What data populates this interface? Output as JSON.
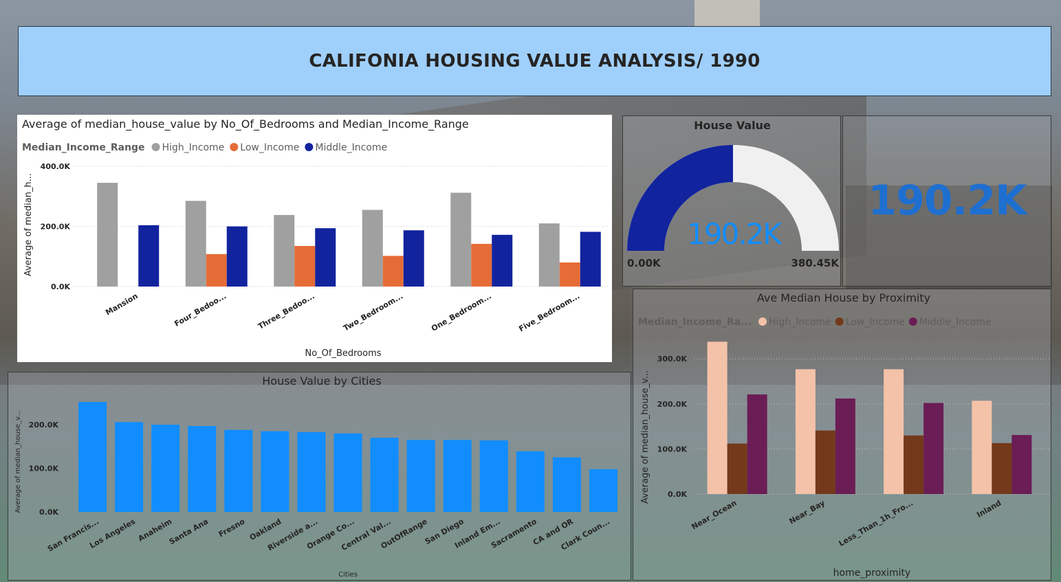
{
  "dashboard": {
    "title": "CALIFONIA HOUSING VALUE ANALYSIS/ 1990"
  },
  "colors": {
    "high_income": "#a0a0a0",
    "low_income": "#e66c37",
    "middle_income": "#12239e",
    "proximity_high": "#f4c2a8",
    "proximity_low": "#74391a",
    "proximity_middle": "#6b1d55",
    "cities_bar": "#118dff",
    "gauge_fill": "#12239e",
    "gauge_track": "#f0f0f0",
    "kpi_text": "#1f6fd0",
    "banner": "#9fcffb"
  },
  "gauge": {
    "title": "House Value",
    "value_label": "190.2K",
    "min_label": "0.00K",
    "max_label": "380.45K",
    "value": 190.2,
    "min": 0,
    "max": 380.45
  },
  "kpi_card": {
    "value_label": "190.2K"
  },
  "chart_data": [
    {
      "id": "bedrooms",
      "type": "bar",
      "title": "Average of median_house_value by No_Of_Bedrooms and Median_Income_Range",
      "legend_title": "Median_Income_Range",
      "xlabel": "No_Of_Bedrooms",
      "ylabel": "Average of median_h...",
      "ylim": [
        0,
        400
      ],
      "yticks": [
        0,
        200,
        400
      ],
      "ytick_labels": [
        "0.0K",
        "200.0K",
        "400.0K"
      ],
      "grid": true,
      "legend_position": "top-left",
      "categories": [
        "Mansion",
        "Four_Bedoo...",
        "Three_Bedoo...",
        "Two_Bedroom...",
        "One_Bedroom...",
        "Five_Bedroom..."
      ],
      "series": [
        {
          "name": "High_Income",
          "values": [
            345,
            285,
            238,
            255,
            312,
            210
          ]
        },
        {
          "name": "Low_Income",
          "values": [
            null,
            108,
            135,
            102,
            142,
            80
          ]
        },
        {
          "name": "Middle_Income",
          "values": [
            204,
            200,
            194,
            187,
            172,
            182
          ]
        }
      ]
    },
    {
      "id": "cities",
      "type": "bar",
      "title": "House Value by Cities",
      "xlabel": "Cities",
      "ylabel": "Average of median_house_v...",
      "ylim": [
        0,
        260
      ],
      "yticks": [
        0,
        100,
        200
      ],
      "ytick_labels": [
        "0.0K",
        "100.0K",
        "200.0K"
      ],
      "grid": false,
      "categories": [
        "San Francis...",
        "Los Angeles",
        "Anaheim",
        "Santa Ana",
        "Fresno",
        "Oakland",
        "Riverside a...",
        "Orange Co...",
        "Central Val...",
        "OutOfRange",
        "San Diego",
        "Inland Em...",
        "Sacramento",
        "CA and OR",
        "Clark Coun..."
      ],
      "values": [
        252,
        206,
        200,
        197,
        188,
        185,
        183,
        180,
        170,
        165,
        165,
        164,
        139,
        125,
        98
      ]
    },
    {
      "id": "proximity",
      "type": "bar",
      "title": "Ave Median House by Proximity",
      "legend_title": "Median_Income_Ra...",
      "xlabel": "home_proximity",
      "ylabel": "Average of median_house_v...",
      "ylim": [
        0,
        340
      ],
      "yticks": [
        0,
        100,
        200,
        300
      ],
      "ytick_labels": [
        "0.0K",
        "100.0K",
        "200.0K",
        "300.0K"
      ],
      "grid": true,
      "legend_position": "top-left",
      "categories": [
        "Near_Ocean",
        "Near_Bay",
        "Less_Than_1h_Fro...",
        "Inland"
      ],
      "series": [
        {
          "name": "High_Income",
          "values": [
            338,
            277,
            277,
            207
          ]
        },
        {
          "name": "Low_Income",
          "values": [
            112,
            141,
            130,
            113
          ]
        },
        {
          "name": "Middle_Income",
          "values": [
            221,
            212,
            202,
            131
          ]
        }
      ]
    }
  ]
}
